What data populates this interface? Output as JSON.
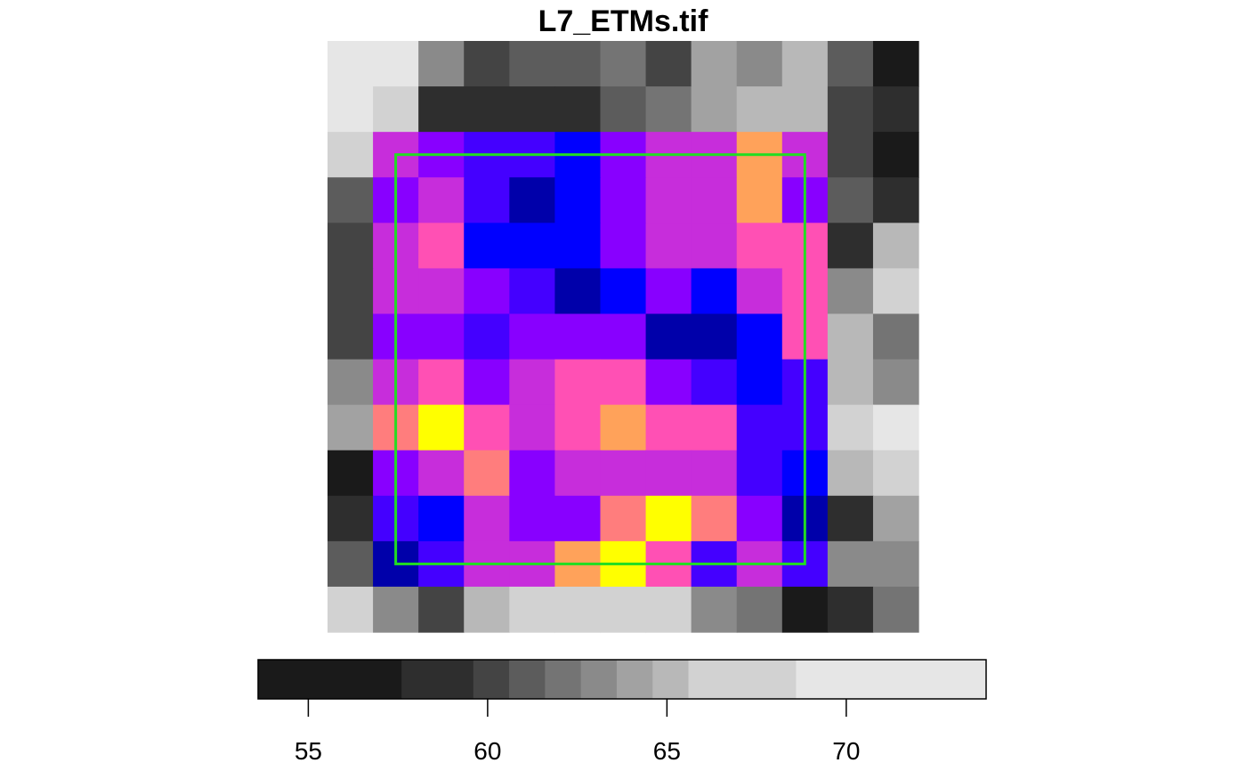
{
  "chart_data": {
    "type": "heatmap",
    "title": "L7_ETMs.tif",
    "xlabel": "",
    "ylabel": "",
    "rows": 13,
    "cols": 13,
    "gray_palette": [
      "#1a1a1a",
      "#2e2e2e",
      "#444444",
      "#5c5c5c",
      "#747474",
      "#8a8a8a",
      "#a2a2a2",
      "#b8b8b8",
      "#d2d2d2",
      "#e6e6e6"
    ],
    "cells": [
      [
        "#e6e6e6",
        "#e6e6e6",
        "#8a8a8a",
        "#444444",
        "#5c5c5c",
        "#5c5c5c",
        "#747474",
        "#444444",
        "#a2a2a2",
        "#8a8a8a",
        "#b8b8b8",
        "#5c5c5c",
        "#1a1a1a"
      ],
      [
        "#e6e6e6",
        "#d2d2d2",
        "#2e2e2e",
        "#2e2e2e",
        "#2e2e2e",
        "#2e2e2e",
        "#5c5c5c",
        "#747474",
        "#a2a2a2",
        "#b8b8b8",
        "#b8b8b8",
        "#444444",
        "#2e2e2e"
      ],
      [
        "#d2d2d2",
        "#c72ddb",
        "#8800ff",
        "#4400ff",
        "#4400ff",
        "#0000ff",
        "#8800ff",
        "#c72ddb",
        "#c72ddb",
        "#ffa25a",
        "#c72ddb",
        "#444444",
        "#1a1a1a"
      ],
      [
        "#5c5c5c",
        "#8800ff",
        "#c72ddb",
        "#4400ff",
        "#0000aa",
        "#0000ff",
        "#8800ff",
        "#c72ddb",
        "#c72ddb",
        "#ffa25a",
        "#8800ff",
        "#5c5c5c",
        "#2e2e2e"
      ],
      [
        "#444444",
        "#c72ddb",
        "#ff50b4",
        "#0000ff",
        "#0000ff",
        "#0000ff",
        "#8800ff",
        "#c72ddb",
        "#c72ddb",
        "#ff50b4",
        "#ff50b4",
        "#2e2e2e",
        "#b8b8b8"
      ],
      [
        "#444444",
        "#c72ddb",
        "#c72ddb",
        "#8800ff",
        "#4400ff",
        "#0000aa",
        "#0000ff",
        "#8800ff",
        "#0000ff",
        "#c72ddb",
        "#ff50b4",
        "#8a8a8a",
        "#d2d2d2"
      ],
      [
        "#444444",
        "#8800ff",
        "#8800ff",
        "#4400ff",
        "#8800ff",
        "#8800ff",
        "#8800ff",
        "#0000aa",
        "#0000aa",
        "#0000ff",
        "#ff50b4",
        "#b8b8b8",
        "#747474"
      ],
      [
        "#8a8a8a",
        "#c72ddb",
        "#ff50b4",
        "#8800ff",
        "#c72ddb",
        "#ff50b4",
        "#ff50b4",
        "#8800ff",
        "#4400ff",
        "#0000ff",
        "#4400ff",
        "#b8b8b8",
        "#8a8a8a"
      ],
      [
        "#a2a2a2",
        "#ff7d7d",
        "#ffff00",
        "#ff50b4",
        "#c72ddb",
        "#ff50b4",
        "#ffa25a",
        "#ff50b4",
        "#ff50b4",
        "#4400ff",
        "#4400ff",
        "#d2d2d2",
        "#e6e6e6"
      ],
      [
        "#1a1a1a",
        "#8800ff",
        "#c72ddb",
        "#ff7d7d",
        "#8800ff",
        "#c72ddb",
        "#c72ddb",
        "#c72ddb",
        "#c72ddb",
        "#4400ff",
        "#0000ff",
        "#b8b8b8",
        "#d2d2d2"
      ],
      [
        "#2e2e2e",
        "#4400ff",
        "#0000ff",
        "#c72ddb",
        "#8800ff",
        "#8800ff",
        "#ff7d7d",
        "#ffff00",
        "#ff7d7d",
        "#8800ff",
        "#0000aa",
        "#2e2e2e",
        "#a2a2a2"
      ],
      [
        "#5c5c5c",
        "#0000aa",
        "#4400ff",
        "#c72ddb",
        "#c72ddb",
        "#ffa25a",
        "#ffff00",
        "#ff50b4",
        "#4400ff",
        "#c72ddb",
        "#4400ff",
        "#8a8a8a",
        "#8a8a8a"
      ],
      [
        "#d2d2d2",
        "#8a8a8a",
        "#444444",
        "#b8b8b8",
        "#d2d2d2",
        "#d2d2d2",
        "#d2d2d2",
        "#d2d2d2",
        "#8a8a8a",
        "#747474",
        "#1a1a1a",
        "#2e2e2e",
        "#747474"
      ]
    ],
    "box_color": "#22dd22",
    "box_extent_cells": {
      "col_start": 1.5,
      "col_end": 10.5,
      "row_start": 2.5,
      "row_end": 11.5
    },
    "legend": {
      "position": "bottom",
      "range": [
        53.6,
        73.9
      ],
      "breaks": [
        53.6,
        57.6,
        59.6,
        60.6,
        61.6,
        62.6,
        63.6,
        64.6,
        65.6,
        68.6,
        73.9
      ],
      "colors": [
        "#1a1a1a",
        "#2e2e2e",
        "#444444",
        "#5c5c5c",
        "#747474",
        "#8a8a8a",
        "#a2a2a2",
        "#b8b8b8",
        "#d2d2d2",
        "#e6e6e6"
      ],
      "ticks": [
        55,
        60,
        65,
        70
      ],
      "tick_labels": [
        "55",
        "60",
        "65",
        "70"
      ]
    }
  }
}
